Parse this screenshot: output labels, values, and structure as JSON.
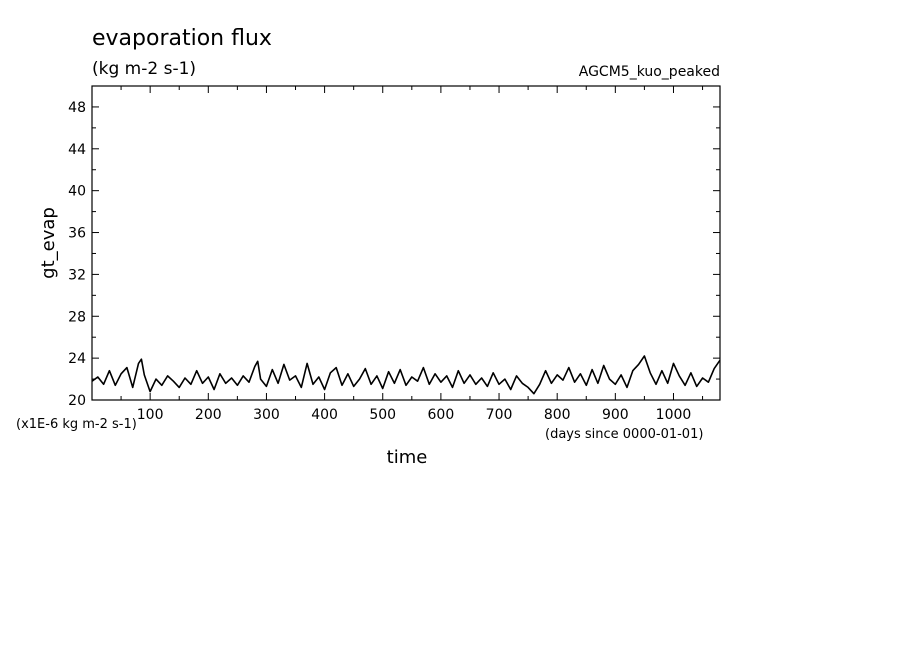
{
  "chart_data": {
    "type": "line",
    "title": "evaporation flux",
    "subtitle": "(kg m-2 s-1)",
    "run_label": "AGCM5_kuo_peaked",
    "xlabel": "time",
    "ylabel": "gt_evap",
    "x_unit_note": "(days since 0000-01-01)",
    "y_unit_note": "(x1E-6 kg m-2 s-1)",
    "xlim": [
      0,
      1080
    ],
    "ylim": [
      20,
      50
    ],
    "x_ticks": [
      100,
      200,
      300,
      400,
      500,
      600,
      700,
      800,
      900,
      1000
    ],
    "y_ticks": [
      20,
      24,
      28,
      32,
      36,
      40,
      44,
      48
    ],
    "grid": false,
    "series": [
      {
        "color": "#000000",
        "x": [
          0,
          10,
          20,
          30,
          40,
          50,
          60,
          70,
          80,
          85,
          90,
          100,
          110,
          120,
          130,
          140,
          150,
          160,
          170,
          180,
          190,
          200,
          210,
          220,
          230,
          240,
          250,
          260,
          270,
          280,
          285,
          290,
          300,
          310,
          320,
          330,
          340,
          350,
          360,
          370,
          380,
          390,
          400,
          410,
          420,
          430,
          440,
          450,
          460,
          470,
          480,
          490,
          500,
          510,
          520,
          530,
          540,
          550,
          560,
          570,
          580,
          590,
          600,
          610,
          620,
          630,
          640,
          650,
          660,
          670,
          680,
          690,
          700,
          710,
          720,
          730,
          740,
          750,
          760,
          770,
          780,
          790,
          800,
          810,
          820,
          830,
          840,
          850,
          860,
          870,
          880,
          890,
          900,
          910,
          920,
          930,
          940,
          950,
          960,
          970,
          980,
          990,
          1000,
          1010,
          1020,
          1030,
          1040,
          1050,
          1060,
          1070,
          1080
        ],
        "values": [
          21.8,
          22.2,
          21.5,
          22.8,
          21.4,
          22.5,
          23.1,
          21.2,
          23.5,
          23.9,
          22.4,
          20.8,
          22.0,
          21.4,
          22.3,
          21.8,
          21.2,
          22.1,
          21.5,
          22.8,
          21.6,
          22.2,
          21.0,
          22.5,
          21.6,
          22.1,
          21.4,
          22.3,
          21.7,
          23.2,
          23.7,
          22.0,
          21.3,
          22.9,
          21.6,
          23.4,
          21.9,
          22.3,
          21.2,
          23.5,
          21.5,
          22.2,
          21.0,
          22.6,
          23.1,
          21.4,
          22.5,
          21.3,
          22.0,
          23.0,
          21.5,
          22.3,
          21.1,
          22.7,
          21.6,
          22.9,
          21.4,
          22.2,
          21.8,
          23.1,
          21.5,
          22.5,
          21.7,
          22.3,
          21.2,
          22.8,
          21.6,
          22.4,
          21.5,
          22.1,
          21.3,
          22.6,
          21.5,
          22.0,
          21.0,
          22.3,
          21.6,
          21.2,
          20.6,
          21.5,
          22.8,
          21.6,
          22.4,
          21.9,
          23.1,
          21.7,
          22.5,
          21.4,
          22.9,
          21.6,
          23.3,
          22.0,
          21.5,
          22.4,
          21.2,
          22.8,
          23.4,
          24.2,
          22.6,
          21.5,
          22.8,
          21.6,
          23.5,
          22.3,
          21.4,
          22.6,
          21.3,
          22.1,
          21.7,
          23.0,
          23.8
        ]
      }
    ]
  }
}
